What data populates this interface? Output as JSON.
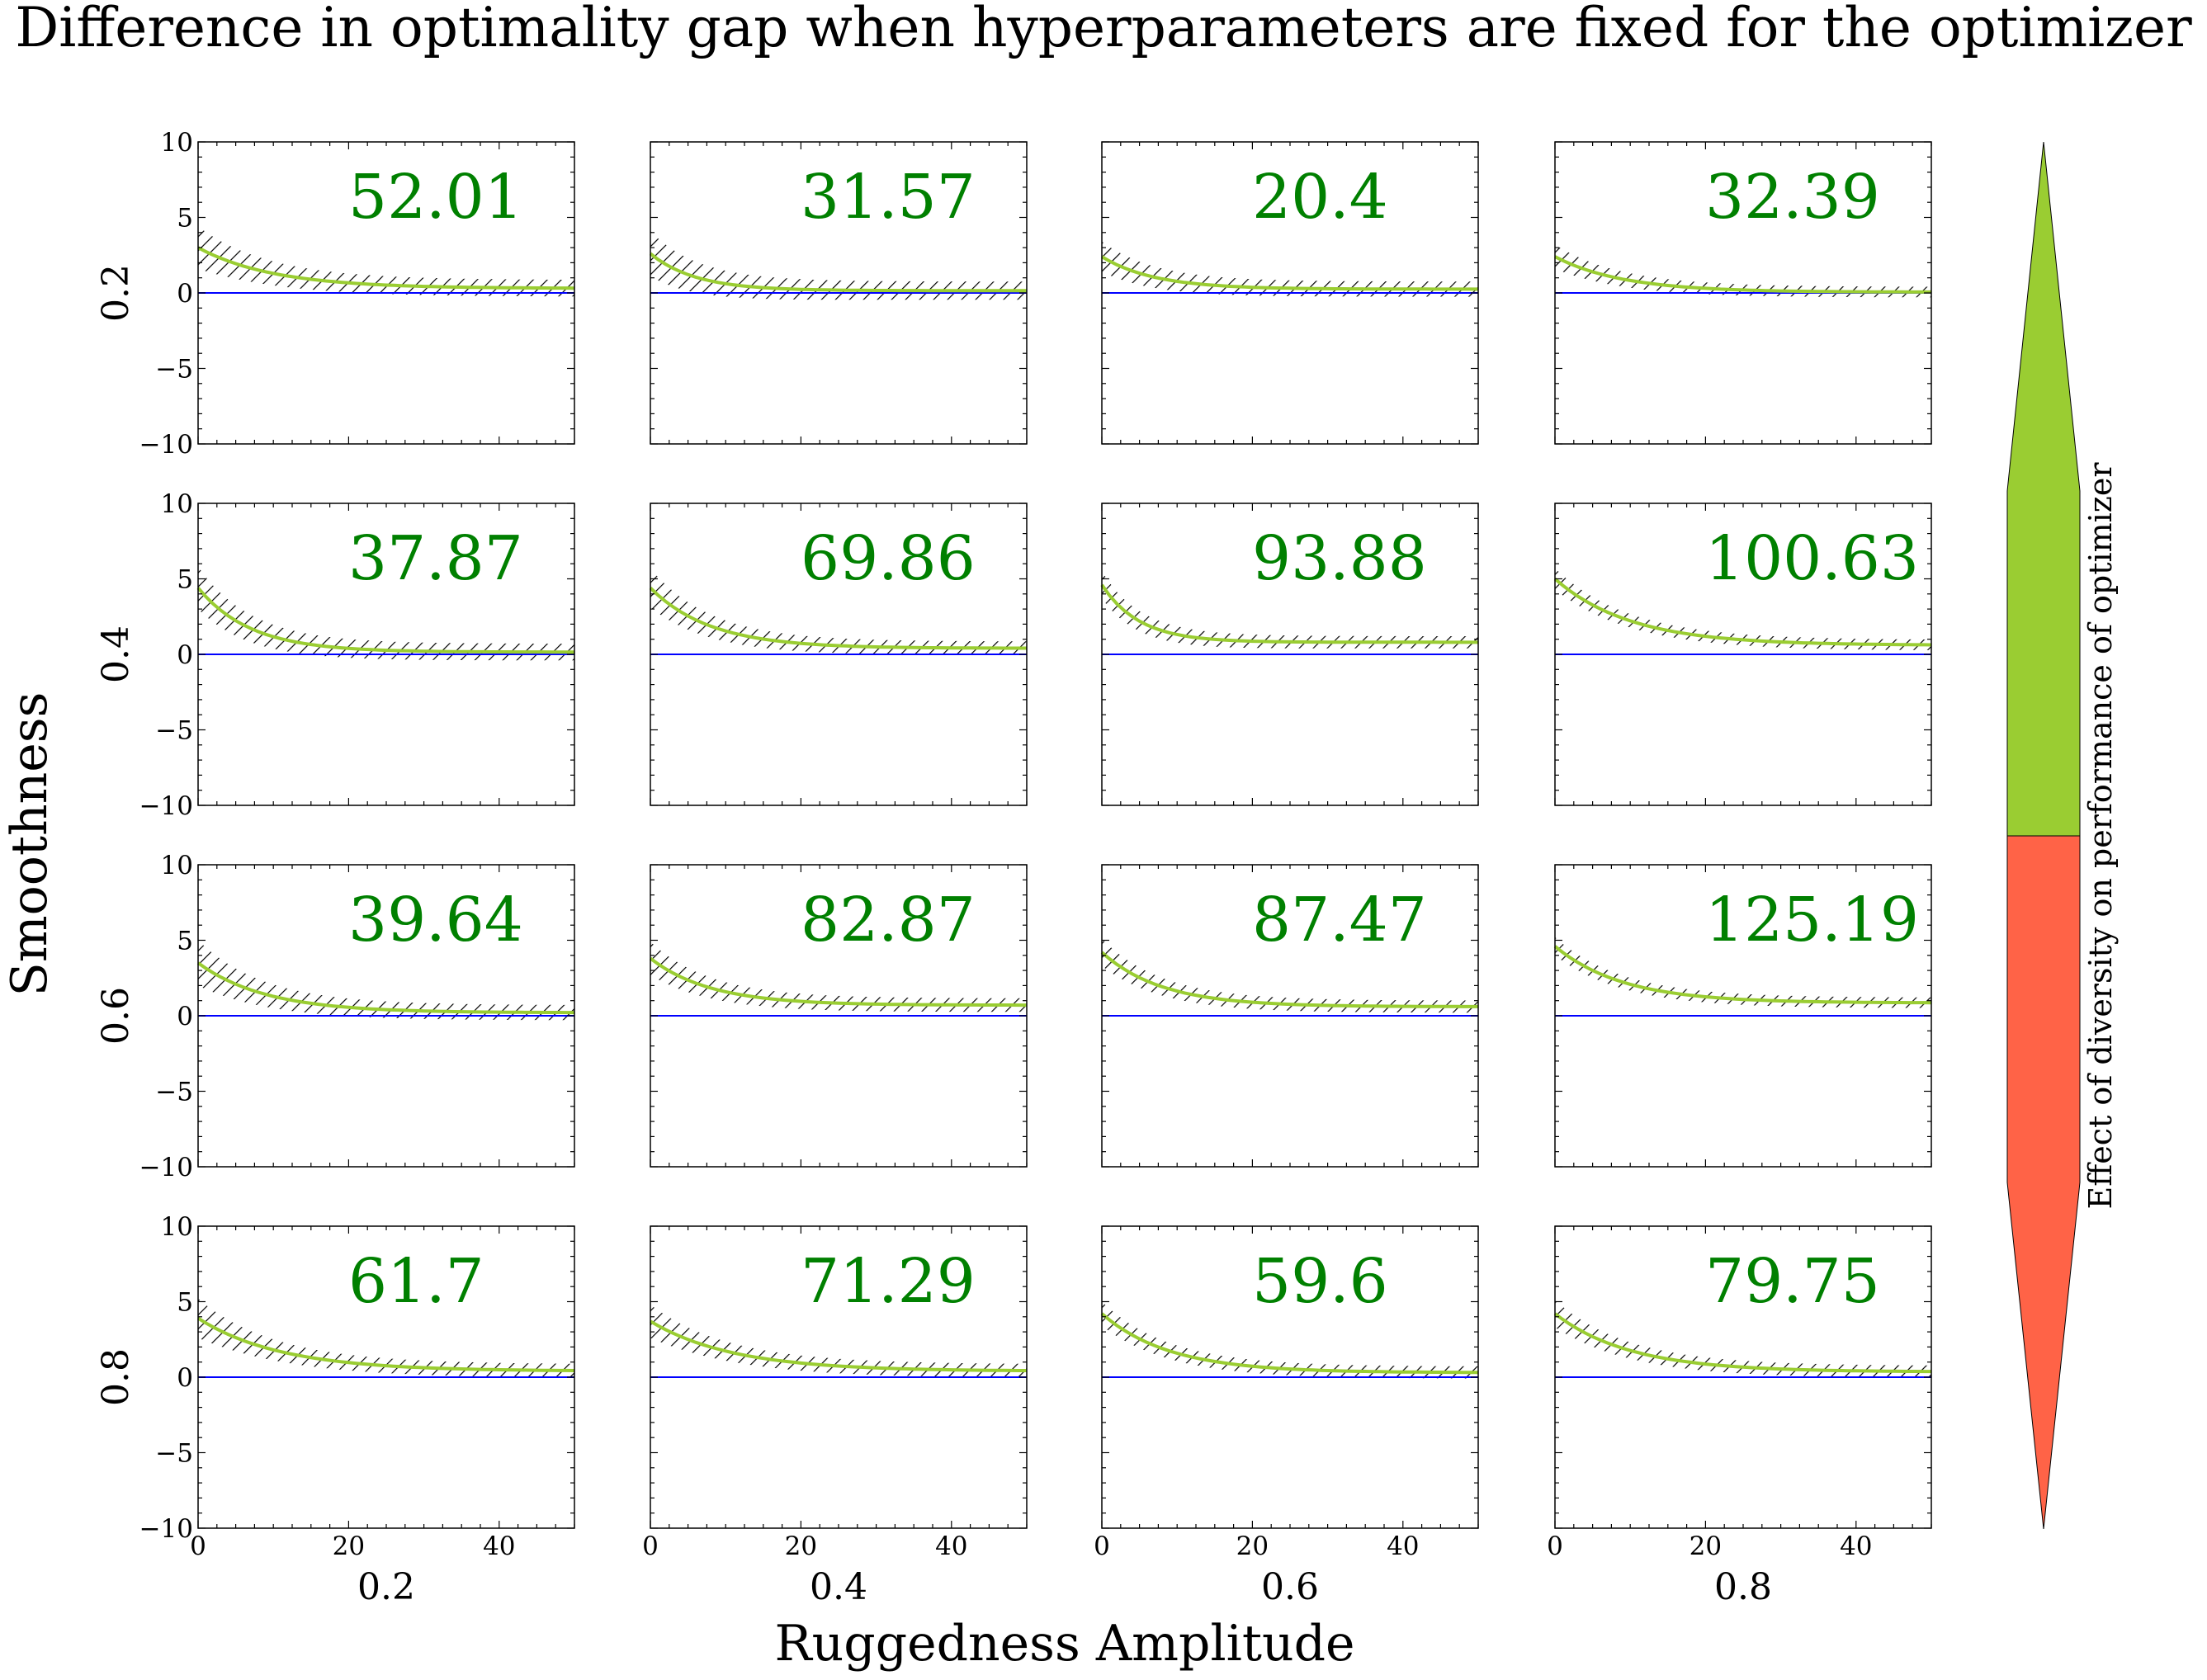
{
  "title": "Difference in optimality gap when hyperparameters are fixed for the optimizer",
  "colors": {
    "band_edge": "#000000",
    "mean_line": "#9ACD32",
    "zero_line": "#0000FF",
    "annotation": "#008000",
    "cbar_positive": "#9ACD32",
    "cbar_negative": "#FF6347"
  },
  "chart_data": {
    "type": "line",
    "xlabel": "Ruggedness Amplitude",
    "ylabel": "Smoothness",
    "colorbar_label": "Effect of diversity on performance of optimizer",
    "xlim": [
      0,
      50
    ],
    "ylim": [
      -10,
      10
    ],
    "xticks": [
      "0",
      "20",
      "40"
    ],
    "yticks": [
      "10",
      "5",
      "0",
      "−5",
      "−10"
    ],
    "columns": [
      "0.2",
      "0.4",
      "0.6",
      "0.8"
    ],
    "rows": [
      "0.2",
      "0.4",
      "0.6",
      "0.8"
    ],
    "panels": [
      [
        {
          "value": "52.01",
          "start": 3.0,
          "end": 0.3,
          "decay": 10,
          "band0": 1.4,
          "band1": 0.55
        },
        {
          "value": "31.57",
          "start": 2.6,
          "end": 0.15,
          "decay": 6,
          "band0": 1.5,
          "band1": 0.6
        },
        {
          "value": "20.4",
          "start": 2.4,
          "end": 0.25,
          "decay": 7,
          "band0": 1.0,
          "band1": 0.5
        },
        {
          "value": "32.39",
          "start": 2.4,
          "end": 0.05,
          "decay": 9,
          "band0": 0.8,
          "band1": 0.35
        }
      ],
      [
        {
          "value": "37.87",
          "start": 4.4,
          "end": 0.15,
          "decay": 7,
          "band0": 1.4,
          "band1": 0.55
        },
        {
          "value": "69.86",
          "start": 4.4,
          "end": 0.4,
          "decay": 8,
          "band0": 1.3,
          "band1": 0.45
        },
        {
          "value": "93.88",
          "start": 4.6,
          "end": 0.8,
          "decay": 5,
          "band0": 0.9,
          "band1": 0.4
        },
        {
          "value": "100.63",
          "start": 5.0,
          "end": 0.6,
          "decay": 10,
          "band0": 0.7,
          "band1": 0.35
        }
      ],
      [
        {
          "value": "39.64",
          "start": 3.5,
          "end": 0.2,
          "decay": 9,
          "band0": 1.5,
          "band1": 0.5
        },
        {
          "value": "82.87",
          "start": 3.8,
          "end": 0.7,
          "decay": 8,
          "band0": 1.1,
          "band1": 0.45
        },
        {
          "value": "87.47",
          "start": 4.2,
          "end": 0.6,
          "decay": 8,
          "band0": 0.9,
          "band1": 0.4
        },
        {
          "value": "125.19",
          "start": 4.6,
          "end": 0.85,
          "decay": 9,
          "band0": 0.6,
          "band1": 0.35
        }
      ],
      [
        {
          "value": "61.7",
          "start": 3.9,
          "end": 0.4,
          "decay": 11,
          "band0": 1.3,
          "band1": 0.45
        },
        {
          "value": "71.29",
          "start": 3.7,
          "end": 0.4,
          "decay": 11,
          "band0": 1.1,
          "band1": 0.45
        },
        {
          "value": "59.6",
          "start": 4.2,
          "end": 0.3,
          "decay": 9,
          "band0": 0.8,
          "band1": 0.4
        },
        {
          "value": "79.75",
          "start": 4.2,
          "end": 0.35,
          "decay": 10,
          "band0": 0.9,
          "band1": 0.4
        }
      ]
    ]
  }
}
